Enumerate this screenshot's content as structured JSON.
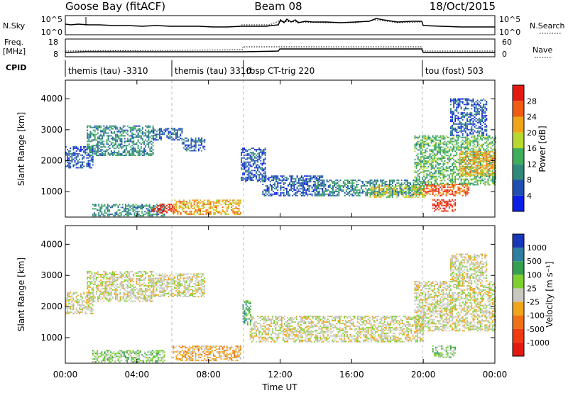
{
  "header": {
    "station": "Goose Bay (fitACF)",
    "beam": "Beam 08",
    "date": "18/Oct/2015"
  },
  "nsky_panel": {
    "left_label": "N.Sky",
    "right_label": "N.Search",
    "left_ticks": [
      "10^5",
      "10^0"
    ],
    "right_ticks": [
      "10^5",
      "10^0"
    ]
  },
  "freq_panel": {
    "left_label_line1": "Freq.",
    "left_label_line2": "[MHz]",
    "right_label": "Nave",
    "left_ticks": [
      "18",
      "8"
    ],
    "right_ticks": [
      "60",
      "0"
    ]
  },
  "cpid": {
    "label": "CPID",
    "segments": [
      {
        "label": "themis (tau) -3310",
        "start_h": 0.0,
        "end_h": 5.95
      },
      {
        "label": "themis (tau) 3310",
        "start_h": 5.95,
        "end_h": 9.95
      },
      {
        "label": "rbsp CT-trig 220",
        "start_h": 9.95,
        "end_h": 19.95
      },
      {
        "label": "tou (fost) 503",
        "start_h": 19.95,
        "end_h": 24.0
      }
    ]
  },
  "chart_data": [
    {
      "type": "heatmap",
      "name": "Power",
      "xlabel": "Time UT",
      "ylabel": "Slant Range [km]",
      "xlim": [
        0,
        24
      ],
      "ylim": [
        180,
        4600
      ],
      "yticks": [
        1000,
        2000,
        3000,
        4000
      ],
      "colorbar_label": "Power [dB]",
      "colorbar_ticks": [
        "4",
        "8",
        "12",
        "16",
        "20",
        "24",
        "28"
      ],
      "colors": [
        "#0b1ee6",
        "#1f4fb0",
        "#2f8a7a",
        "#3fae5a",
        "#b7d82c",
        "#f0a418",
        "#f15b14",
        "#e41a12"
      ],
      "bands": [
        {
          "x0": 0.0,
          "x1": 1.5,
          "y0": 1750,
          "y1": 2450,
          "level": 1
        },
        {
          "x0": 1.2,
          "x1": 4.9,
          "y0": 2150,
          "y1": 3100,
          "level": 2
        },
        {
          "x0": 4.9,
          "x1": 6.5,
          "y0": 2650,
          "y1": 3050,
          "level": 1
        },
        {
          "x0": 6.5,
          "x1": 7.8,
          "y0": 2300,
          "y1": 2750,
          "level": 1
        },
        {
          "x0": 1.5,
          "x1": 5.5,
          "y0": 200,
          "y1": 600,
          "level": 2
        },
        {
          "x0": 4.8,
          "x1": 6.2,
          "y0": 300,
          "y1": 580,
          "level": 7
        },
        {
          "x0": 6.0,
          "x1": 9.8,
          "y0": 250,
          "y1": 720,
          "level": 5
        },
        {
          "x0": 9.8,
          "x1": 11.2,
          "y0": 1300,
          "y1": 2400,
          "level": 1
        },
        {
          "x0": 11.0,
          "x1": 14.5,
          "y0": 850,
          "y1": 1500,
          "level": 1
        },
        {
          "x0": 14.0,
          "x1": 20.0,
          "y0": 850,
          "y1": 1350,
          "level": 2
        },
        {
          "x0": 17.0,
          "x1": 20.0,
          "y0": 800,
          "y1": 1200,
          "level": 4
        },
        {
          "x0": 19.5,
          "x1": 24.0,
          "y0": 1200,
          "y1": 2800,
          "level": 3
        },
        {
          "x0": 20.0,
          "x1": 22.5,
          "y0": 850,
          "y1": 1250,
          "level": 6
        },
        {
          "x0": 20.5,
          "x1": 21.8,
          "y0": 350,
          "y1": 750,
          "level": 7
        },
        {
          "x0": 22.0,
          "x1": 24.0,
          "y0": 1500,
          "y1": 2300,
          "level": 5
        },
        {
          "x0": 21.5,
          "x1": 23.5,
          "y0": 2800,
          "y1": 4000,
          "level": 1
        }
      ]
    },
    {
      "type": "heatmap",
      "name": "Velocity",
      "xlabel": "Time UT",
      "ylabel": "Slant Range [km]",
      "xlim": [
        0,
        24
      ],
      "ylim": [
        180,
        4600
      ],
      "yticks": [
        1000,
        2000,
        3000,
        4000
      ],
      "colorbar_label": "Velocity [m s⁻¹]",
      "colorbar_ticks": [
        "1000",
        "500",
        "100",
        "25",
        "-25",
        "-100",
        "-500",
        "-1000"
      ],
      "colors": [
        "#1836b8",
        "#2f7fa0",
        "#35a050",
        "#7fcf2f",
        "#c8c8c0",
        "#f0a418",
        "#f07014",
        "#f03a12",
        "#e41a12"
      ],
      "bands": [
        {
          "x0": 0.0,
          "x1": 1.5,
          "y0": 1750,
          "y1": 2450,
          "level": 4
        },
        {
          "x0": 1.2,
          "x1": 4.9,
          "y0": 2150,
          "y1": 3100,
          "level": 4
        },
        {
          "x0": 4.9,
          "x1": 7.8,
          "y0": 2300,
          "y1": 3050,
          "level": 4
        },
        {
          "x0": 1.5,
          "x1": 5.5,
          "y0": 200,
          "y1": 600,
          "level": 3
        },
        {
          "x0": 6.0,
          "x1": 9.8,
          "y0": 250,
          "y1": 720,
          "level": 5
        },
        {
          "x0": 9.9,
          "x1": 10.4,
          "y0": 1400,
          "y1": 2200,
          "level": 2
        },
        {
          "x0": 10.3,
          "x1": 20.0,
          "y0": 850,
          "y1": 1700,
          "level": 4
        },
        {
          "x0": 19.5,
          "x1": 24.0,
          "y0": 1200,
          "y1": 2800,
          "level": 4
        },
        {
          "x0": 20.5,
          "x1": 21.8,
          "y0": 350,
          "y1": 750,
          "level": 3
        },
        {
          "x0": 21.5,
          "x1": 23.5,
          "y0": 2800,
          "y1": 3700,
          "level": 4
        }
      ]
    }
  ],
  "x_axis": {
    "ticks": [
      "00:00",
      "04:00",
      "08:00",
      "12:00",
      "16:00",
      "20:00",
      "00:00"
    ],
    "tick_hours": [
      0,
      4,
      8,
      12,
      16,
      20,
      24
    ],
    "label": "Time UT"
  }
}
